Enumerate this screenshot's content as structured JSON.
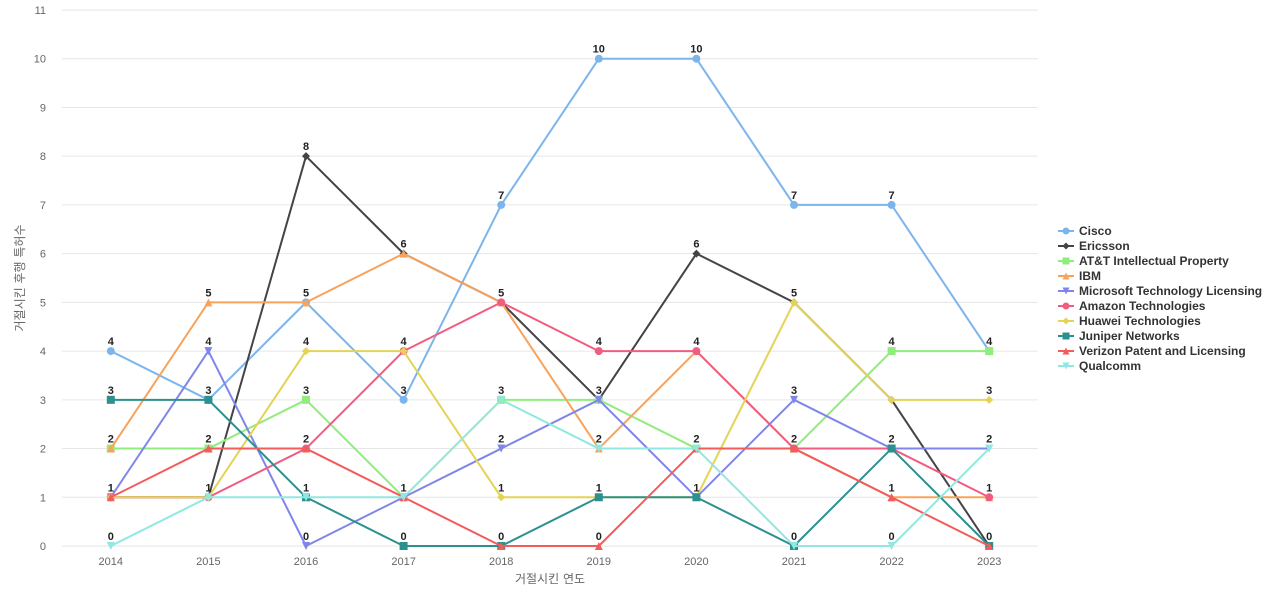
{
  "chart_data": {
    "type": "line",
    "xlabel": "거절시킨 연도",
    "ylabel": "거절시킨 후행 특허수",
    "x": [
      "2014",
      "2015",
      "2016",
      "2017",
      "2018",
      "2019",
      "2020",
      "2021",
      "2022",
      "2023"
    ],
    "ylim": [
      0,
      11
    ],
    "yticks": [
      0,
      1,
      2,
      3,
      4,
      5,
      6,
      7,
      8,
      9,
      10,
      11
    ],
    "grid": true,
    "legend_position": "right",
    "series": [
      {
        "name": "Cisco",
        "color": "#7cb5ec",
        "marker": "circle",
        "values": [
          4,
          3,
          5,
          3,
          7,
          10,
          10,
          7,
          7,
          4
        ],
        "labels": [
          4,
          3,
          5,
          3,
          7,
          10,
          10,
          7,
          7,
          4
        ]
      },
      {
        "name": "Ericsson",
        "color": "#434348",
        "marker": "diamond",
        "values": [
          1,
          1,
          8,
          6,
          5,
          3,
          6,
          5,
          3,
          0
        ],
        "labels": [
          null,
          null,
          8,
          null,
          null,
          null,
          6,
          null,
          null,
          null
        ]
      },
      {
        "name": "AT&T Intellectual Property",
        "color": "#90ed7d",
        "marker": "square",
        "values": [
          2,
          2,
          3,
          1,
          3,
          3,
          2,
          2,
          4,
          4
        ],
        "labels": [
          null,
          null,
          3,
          null,
          null,
          3,
          null,
          null,
          4,
          null
        ]
      },
      {
        "name": "IBM",
        "color": "#f7a35c",
        "marker": "triangle",
        "values": [
          2,
          5,
          5,
          6,
          5,
          2,
          4,
          2,
          1,
          1
        ],
        "labels": [
          2,
          5,
          null,
          6,
          null,
          2,
          null,
          2,
          null,
          null
        ]
      },
      {
        "name": "Microsoft Technology Licensing",
        "color": "#8085e9",
        "marker": "triangle-down",
        "values": [
          1,
          4,
          0,
          1,
          2,
          3,
          1,
          3,
          2,
          2
        ],
        "labels": [
          null,
          4,
          0,
          null,
          2,
          null,
          null,
          3,
          null,
          2
        ]
      },
      {
        "name": "Amazon Technologies",
        "color": "#f15c80",
        "marker": "circle",
        "values": [
          1,
          1,
          2,
          4,
          5,
          4,
          4,
          2,
          2,
          1
        ],
        "labels": [
          null,
          null,
          null,
          null,
          5,
          4,
          4,
          null,
          null,
          1
        ]
      },
      {
        "name": "Huawei Technologies",
        "color": "#e4d354",
        "marker": "diamond",
        "values": [
          1,
          1,
          4,
          4,
          1,
          1,
          1,
          5,
          3,
          3
        ],
        "labels": [
          null,
          null,
          4,
          4,
          1,
          null,
          null,
          5,
          null,
          3
        ]
      },
      {
        "name": "Juniper Networks",
        "color": "#2b908f",
        "marker": "square",
        "values": [
          3,
          3,
          1,
          0,
          0,
          1,
          1,
          0,
          2,
          0
        ],
        "labels": [
          3,
          null,
          null,
          0,
          null,
          1,
          1,
          null,
          2,
          null
        ]
      },
      {
        "name": "Verizon Patent and Licensing",
        "color": "#f45b5b",
        "marker": "triangle",
        "values": [
          1,
          2,
          2,
          1,
          0,
          0,
          2,
          2,
          1,
          0
        ],
        "labels": [
          1,
          2,
          2,
          null,
          0,
          0,
          2,
          null,
          1,
          0
        ]
      },
      {
        "name": "Qualcomm",
        "color": "#91e8e1",
        "marker": "triangle-down",
        "values": [
          0,
          1,
          1,
          1,
          3,
          2,
          2,
          0,
          0,
          2
        ],
        "labels": [
          0,
          1,
          1,
          1,
          3,
          null,
          null,
          0,
          0,
          null
        ]
      }
    ]
  }
}
